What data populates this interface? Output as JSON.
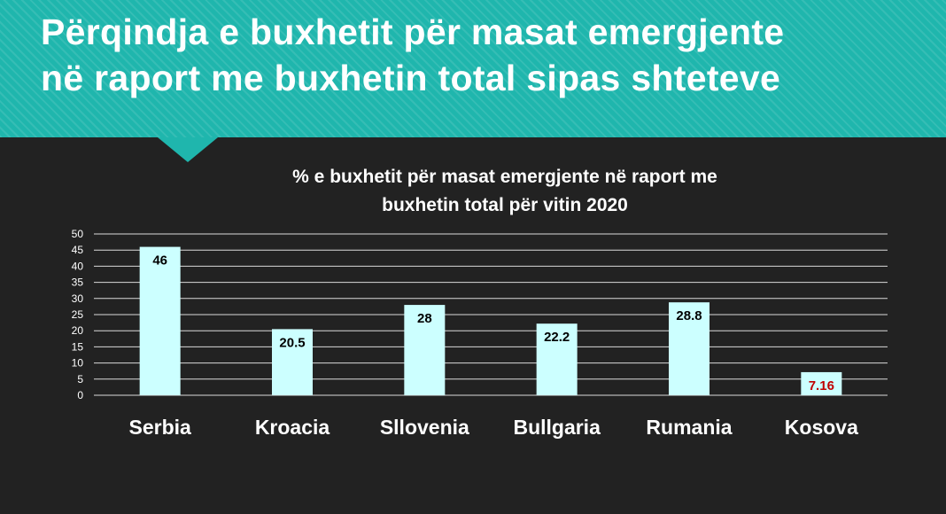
{
  "header": {
    "title_line1": "Përqindja e buxhetit për masat emergjente",
    "title_line2": "në raport me buxhetin total sipas shteteve"
  },
  "colors": {
    "banner": "#1fb6ad",
    "background": "#222222",
    "bar": "#ccffff",
    "highlight_label": "#c00000"
  },
  "chart_data": {
    "type": "bar",
    "title_line1": "% e buxhetit për masat emergjente në raport me",
    "title_line2": "buxhetin total për vitin 2020",
    "categories": [
      "Serbia",
      "Kroacia",
      "Sllovenia",
      "Bullgaria",
      "Rumania",
      "Kosova"
    ],
    "values": [
      46,
      20.5,
      28,
      22.2,
      28.8,
      7.16
    ],
    "value_labels": [
      "46",
      "20.5",
      "28",
      "22.2",
      "28.8",
      "7.16"
    ],
    "highlight": "Kosova",
    "ylim": [
      0,
      50
    ],
    "yticks": [
      0,
      5,
      10,
      15,
      20,
      25,
      30,
      35,
      40,
      45,
      50
    ],
    "grid": true,
    "legend": "none"
  }
}
